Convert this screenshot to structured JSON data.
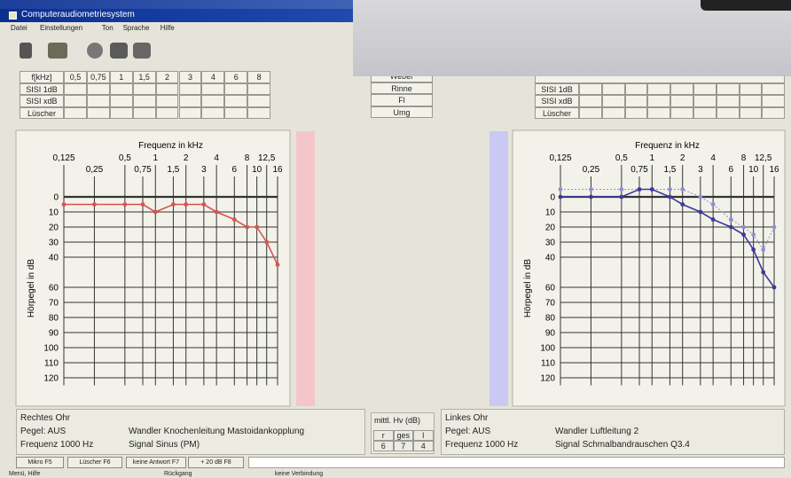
{
  "window": {
    "title": "Computeraudiometriesystem",
    "menu": [
      "Datei",
      "Einstellungen",
      "Ton",
      "Sprache",
      "Hilfe"
    ]
  },
  "tables": {
    "left": {
      "header": [
        "f[kHz]",
        "0,5",
        "0,75",
        "1",
        "1,5",
        "2",
        "3",
        "4",
        "6",
        "8"
      ],
      "rows": [
        "SISI 1dB",
        "SISI xdB",
        "Lüscher"
      ]
    },
    "middle": {
      "rows": [
        "Weber",
        "Rinne",
        "Fl",
        "Umg"
      ]
    },
    "right": {
      "rows": [
        "SISI 1dB",
        "SISI xdB",
        "Lüscher"
      ]
    }
  },
  "chart_data": [
    {
      "type": "line",
      "x_label": "Frequenz in kHz",
      "y_label": "Hörpegel in dB",
      "log_x": true,
      "y_inverted": true,
      "grid": true,
      "side_color": "#f4c6ca",
      "x": [
        0.125,
        0.25,
        0.5,
        0.75,
        1,
        1.5,
        2,
        3,
        4,
        6,
        8,
        10,
        12.5,
        16
      ],
      "xlim": [
        0.125,
        16
      ],
      "xticks": [
        {
          "value": 0.125,
          "label": "0,125"
        },
        {
          "value": 0.25,
          "label": "0,25"
        },
        {
          "value": 0.5,
          "label": "0,5"
        },
        {
          "value": 0.75,
          "label": "0,75"
        },
        1,
        {
          "value": 1.5,
          "label": "1,5"
        },
        2,
        3,
        4,
        6,
        8,
        10,
        {
          "value": 12.5,
          "label": "12,5"
        },
        16
      ],
      "ylim": [
        -10,
        125
      ],
      "yticks": [
        0,
        10,
        20,
        30,
        40,
        60,
        70,
        80,
        90,
        100,
        110,
        120
      ],
      "series": [
        {
          "color": "#d9534f",
          "linestyle": "solid",
          "values": [
            5,
            5,
            5,
            5,
            10,
            5,
            5,
            5,
            10,
            15,
            20,
            20,
            30,
            45
          ]
        }
      ]
    },
    {
      "type": "line",
      "x_label": "Frequenz in kHz",
      "y_label": "Hörpegel in dB",
      "log_x": true,
      "y_inverted": true,
      "grid": true,
      "side_color": "#c9c9f2",
      "x": [
        0.125,
        0.25,
        0.5,
        0.75,
        1,
        1.5,
        2,
        3,
        4,
        6,
        8,
        10,
        12.5,
        16
      ],
      "xlim": [
        0.125,
        16
      ],
      "xticks": [
        {
          "value": 0.125,
          "label": "0,125"
        },
        {
          "value": 0.25,
          "label": "0,25"
        },
        {
          "value": 0.5,
          "label": "0,5"
        },
        {
          "value": 0.75,
          "label": "0,75"
        },
        1,
        {
          "value": 1.5,
          "label": "1,5"
        },
        2,
        3,
        4,
        6,
        8,
        10,
        {
          "value": 12.5,
          "label": "12,5"
        },
        16
      ],
      "ylim": [
        -10,
        125
      ],
      "yticks": [
        0,
        10,
        20,
        30,
        40,
        60,
        70,
        80,
        90,
        100,
        110,
        120
      ],
      "series": [
        {
          "color": "#8f8fd6",
          "linestyle": "dotted",
          "values": [
            -5,
            -5,
            -5,
            -5,
            -5,
            -5,
            -5,
            0,
            5,
            15,
            20,
            25,
            35,
            20
          ]
        },
        {
          "color": "#3a3a9e",
          "linestyle": "solid",
          "values": [
            0,
            0,
            0,
            -5,
            -5,
            0,
            5,
            10,
            15,
            20,
            25,
            35,
            50,
            60
          ]
        }
      ]
    }
  ],
  "ear_info": [
    {
      "title": "Rechtes Ohr",
      "level": "Pegel: AUS",
      "frequency": "Frequenz 1000 Hz",
      "transducer": "Wandler Knochenleitung Mastoidankopplung",
      "signal": "Signal Sinus (PM)"
    },
    {
      "title": "Linkes Ohr",
      "level": "Pegel: AUS",
      "frequency": "Frequenz 1000 Hz",
      "transducer": "Wandler Luftleitung 2",
      "signal": "Signal Schmalbandrauschen Q3.4"
    }
  ],
  "mean_loss": {
    "title": "mittl. Hv (dB)",
    "headers": [
      "r",
      "ges",
      "l"
    ],
    "values": [
      6,
      7,
      4
    ]
  },
  "buttons": [
    "Mikro F5",
    "Lüscher F6",
    "keine Antwort F7",
    "+ 20 dB F8"
  ],
  "status": [
    "Menü, Hilfe",
    "Rückgang",
    "keine Verbindung"
  ]
}
